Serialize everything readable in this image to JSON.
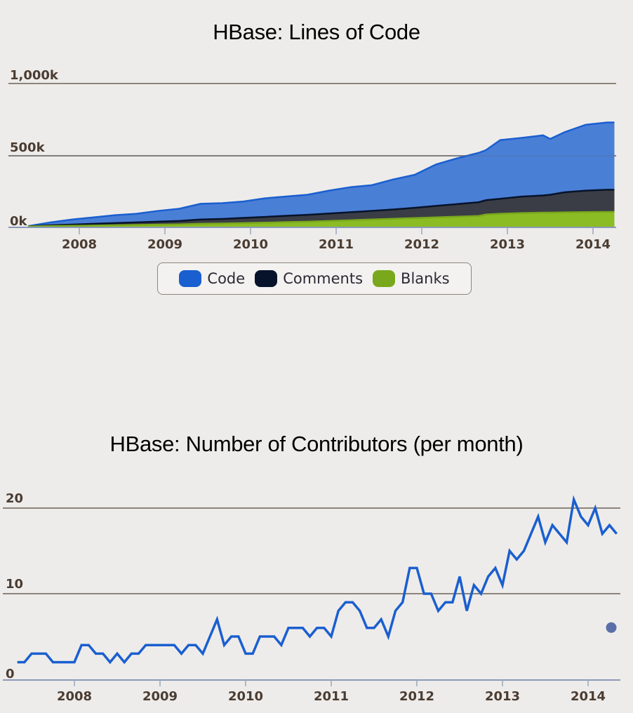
{
  "chart_data": [
    {
      "type": "area",
      "stacked": true,
      "title": "HBase: Lines of Code",
      "xlabel": "",
      "ylabel": "",
      "x_tick_labels": [
        "2008",
        "2009",
        "2010",
        "2011",
        "2012",
        "2013",
        "2014"
      ],
      "y_tick_labels": [
        "0k",
        "500k",
        "1,000k"
      ],
      "ylim": [
        0,
        1000000
      ],
      "grid": true,
      "legend_position": "bottom-center",
      "x": [
        "2007-06",
        "2007-09",
        "2007-12",
        "2008-03",
        "2008-06",
        "2008-09",
        "2008-12",
        "2009-03",
        "2009-06",
        "2009-09",
        "2009-12",
        "2010-03",
        "2010-06",
        "2010-09",
        "2010-12",
        "2011-03",
        "2011-06",
        "2011-09",
        "2011-12",
        "2012-03",
        "2012-06",
        "2012-09",
        "2012-10",
        "2012-12",
        "2013-03",
        "2013-06",
        "2013-07",
        "2013-09",
        "2013-12",
        "2014-03",
        "2014-04"
      ],
      "series": [
        {
          "name": "Code",
          "color": "#1a5fd0",
          "values": [
            2000,
            20000,
            35000,
            45000,
            55000,
            60000,
            75000,
            85000,
            110000,
            110000,
            115000,
            130000,
            135000,
            140000,
            160000,
            175000,
            180000,
            210000,
            230000,
            290000,
            320000,
            345000,
            350000,
            410000,
            410000,
            420000,
            390000,
            420000,
            460000,
            470000,
            470000
          ]
        },
        {
          "name": "Comments",
          "color": "#07132a",
          "values": [
            1000,
            6000,
            9000,
            12000,
            15000,
            18000,
            21000,
            24000,
            30000,
            32000,
            36000,
            40000,
            44000,
            48000,
            52000,
            56000,
            60000,
            65000,
            72000,
            80000,
            88000,
            96000,
            100000,
            105000,
            115000,
            120000,
            125000,
            140000,
            150000,
            155000,
            155000
          ]
        },
        {
          "name": "Blanks",
          "color": "#7aa81c",
          "values": [
            1000,
            4000,
            6000,
            8000,
            10000,
            12000,
            14000,
            16000,
            20000,
            22000,
            25000,
            28000,
            32000,
            35000,
            40000,
            45000,
            50000,
            55000,
            60000,
            65000,
            70000,
            75000,
            85000,
            90000,
            95000,
            98000,
            98000,
            100000,
            102000,
            103000,
            103000
          ]
        }
      ]
    },
    {
      "type": "line",
      "title": "HBase: Number of Contributors (per month)",
      "xlabel": "",
      "ylabel": "",
      "x_tick_labels": [
        "2008",
        "2009",
        "2010",
        "2011",
        "2012",
        "2013",
        "2014"
      ],
      "y_tick_labels": [
        "0",
        "10",
        "20"
      ],
      "ylim": [
        0,
        21
      ],
      "grid": true,
      "color": "#1a5fd0",
      "x_start": "2007-05",
      "series": [
        {
          "name": "Contributors",
          "values": [
            2,
            2,
            3,
            3,
            3,
            2,
            2,
            2,
            2,
            4,
            4,
            3,
            3,
            2,
            3,
            2,
            3,
            3,
            4,
            4,
            4,
            4,
            4,
            3,
            4,
            4,
            3,
            5,
            7,
            4,
            5,
            5,
            3,
            3,
            5,
            5,
            5,
            4,
            6,
            6,
            6,
            5,
            6,
            6,
            5,
            8,
            9,
            9,
            8,
            6,
            6,
            7,
            5,
            8,
            9,
            13,
            13,
            10,
            10,
            8,
            9,
            9,
            12,
            8,
            11,
            10,
            12,
            13,
            11,
            15,
            14,
            15,
            17,
            19,
            16,
            18,
            17,
            16,
            21,
            19,
            18,
            20,
            17,
            18,
            17
          ]
        }
      ],
      "extra_point": {
        "date": "2014-04",
        "value": 6,
        "color": "#5a6fa8"
      }
    }
  ],
  "titles": {
    "loc": "HBase: Lines of Code",
    "contributors": "HBase: Number of Contributors (per month)"
  },
  "loc_axis": {
    "y_labels": [
      "1,000k",
      "500k",
      "0k"
    ],
    "x_labels": [
      "2008",
      "2009",
      "2010",
      "2011",
      "2012",
      "2013",
      "2014"
    ]
  },
  "contrib_axis": {
    "y_labels": [
      "20",
      "10",
      "0"
    ],
    "x_labels": [
      "2008",
      "2009",
      "2010",
      "2011",
      "2012",
      "2013",
      "2014"
    ]
  },
  "legend": {
    "items": [
      {
        "label": "Code",
        "color": "#1a5fd0"
      },
      {
        "label": "Comments",
        "color": "#07132a"
      },
      {
        "label": "Blanks",
        "color": "#7aa81c"
      }
    ]
  },
  "colors": {
    "background": "#eeecea",
    "gridline": "#8c847c",
    "axis": "#8a9ab8",
    "code_fill": "#4a7fd6",
    "comments_fill": "#3a3d45",
    "blanks_fill": "#8cbc24",
    "line": "#1a5fd0"
  }
}
